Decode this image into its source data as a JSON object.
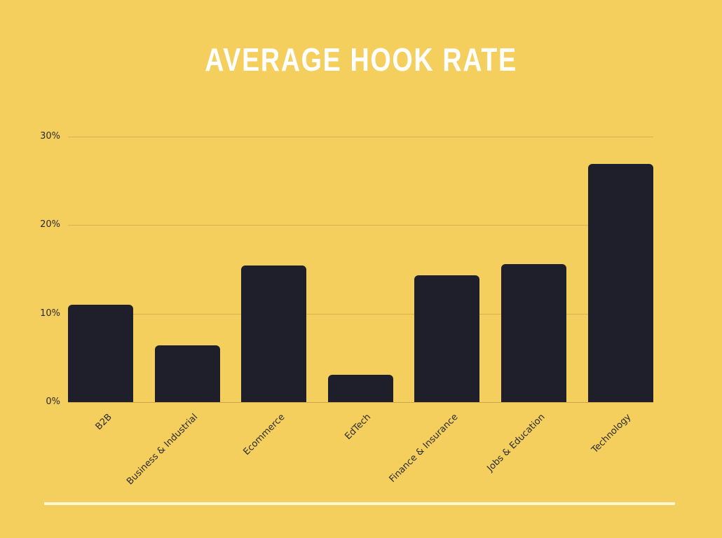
{
  "title": "AVERAGE HOOK RATE",
  "colors": {
    "background": "#f4cf5e",
    "bar": "#1f1e2b",
    "title": "#ffffff",
    "grid": "#d6b24f"
  },
  "y_ticks": [
    "0%",
    "10%",
    "20%",
    "30%"
  ],
  "chart_data": {
    "type": "bar",
    "title": "AVERAGE HOOK RATE",
    "xlabel": "",
    "ylabel": "",
    "categories": [
      "B2B",
      "Business & Industrial",
      "Ecommerce",
      "EdTech",
      "Finance & Insurance",
      "Jobs & Education",
      "Technology"
    ],
    "values": [
      11.0,
      6.4,
      15.4,
      3.1,
      14.3,
      15.6,
      26.9
    ],
    "unit": "%",
    "ylim": [
      0,
      30
    ],
    "yticks": [
      0,
      10,
      20,
      30
    ],
    "grid": true,
    "legend": null
  }
}
